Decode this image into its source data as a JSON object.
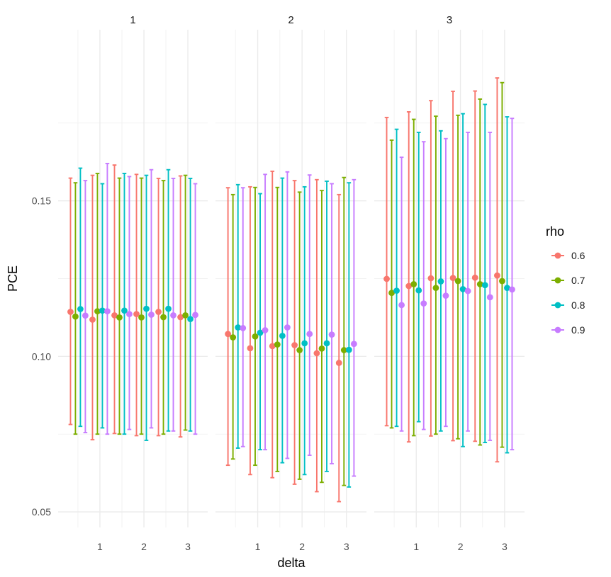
{
  "chart_data": {
    "type": "scatter",
    "title": "",
    "xlabel": "delta",
    "ylabel": "PCE",
    "facets": [
      "1",
      "2",
      "3"
    ],
    "ylim": [
      0.045,
      0.205
    ],
    "y_ticks": [
      0.05,
      0.1,
      0.15
    ],
    "y_tick_labels": [
      "0.05",
      "0.10",
      "0.15"
    ],
    "x_ticks": [
      1,
      2,
      3
    ],
    "x_tick_labels": [
      "1",
      "2",
      "3"
    ],
    "x_groups": [
      0.5,
      1.0,
      1.5,
      2.0,
      2.5,
      3.0
    ],
    "grid": true,
    "legend": {
      "title": "rho",
      "position": "right",
      "entries": [
        {
          "label": "0.6",
          "color": "#F8766D"
        },
        {
          "label": "0.7",
          "color": "#7CAE00"
        },
        {
          "label": "0.8",
          "color": "#00BFC4"
        },
        {
          "label": "0.9",
          "color": "#C77CFF"
        }
      ]
    },
    "series": [
      {
        "name": "0.6",
        "color": "#F8766D",
        "panels": [
          {
            "y": [
              0.1143,
              0.1118,
              0.1132,
              0.1136,
              0.1143,
              0.1126
            ],
            "lower": [
              0.0781,
              0.0732,
              0.0752,
              0.0745,
              0.0745,
              0.0741
            ],
            "upper": [
              0.1573,
              0.1582,
              0.1615,
              0.1585,
              0.1572,
              0.158
            ]
          },
          {
            "y": [
              0.1072,
              0.1026,
              0.1033,
              0.1036,
              0.101,
              0.0979
            ],
            "lower": [
              0.065,
              0.062,
              0.061,
              0.0589,
              0.0565,
              0.0533
            ],
            "upper": [
              0.1542,
              0.1545,
              0.1595,
              0.1565,
              0.1568,
              0.152
            ]
          },
          {
            "y": [
              0.1249,
              0.1226,
              0.1251,
              0.1252,
              0.1253,
              0.126
            ],
            "lower": [
              0.0777,
              0.0725,
              0.0744,
              0.0729,
              0.0727,
              0.0661
            ],
            "upper": [
              0.1768,
              0.1786,
              0.1822,
              0.1852,
              0.1853,
              0.1895
            ]
          }
        ]
      },
      {
        "name": "0.7",
        "color": "#7CAE00",
        "panels": [
          {
            "y": [
              0.1128,
              0.1145,
              0.1125,
              0.1125,
              0.1126,
              0.1132
            ],
            "lower": [
              0.075,
              0.075,
              0.075,
              0.075,
              0.075,
              0.0763
            ],
            "upper": [
              0.1558,
              0.1588,
              0.1573,
              0.1573,
              0.1565,
              0.1582
            ]
          },
          {
            "y": [
              0.1061,
              0.1064,
              0.1038,
              0.102,
              0.1025,
              0.102
            ],
            "lower": [
              0.067,
              0.065,
              0.063,
              0.0605,
              0.0595,
              0.0585
            ],
            "upper": [
              0.152,
              0.1543,
              0.1543,
              0.1528,
              0.1533,
              0.1575
            ]
          },
          {
            "y": [
              0.1204,
              0.1232,
              0.122,
              0.1242,
              0.1232,
              0.1242
            ],
            "lower": [
              0.077,
              0.0745,
              0.075,
              0.0735,
              0.0715,
              0.0708
            ],
            "upper": [
              0.1695,
              0.1762,
              0.1772,
              0.1775,
              0.1827,
              0.188
            ]
          }
        ]
      },
      {
        "name": "0.8",
        "color": "#00BFC4",
        "panels": [
          {
            "y": [
              0.1152,
              0.1147,
              0.1147,
              0.1153,
              0.1153,
              0.112
            ],
            "lower": [
              0.0775,
              0.077,
              0.075,
              0.073,
              0.076,
              0.076
            ],
            "upper": [
              0.1605,
              0.1555,
              0.1588,
              0.1582,
              0.16,
              0.1572
            ]
          },
          {
            "y": [
              0.1093,
              0.1076,
              0.1066,
              0.1042,
              0.1042,
              0.1021
            ],
            "lower": [
              0.0705,
              0.07,
              0.0658,
              0.062,
              0.063,
              0.058
            ],
            "upper": [
              0.1552,
              0.1523,
              0.1573,
              0.1545,
              0.1563,
              0.1558
            ]
          },
          {
            "y": [
              0.1211,
              0.1212,
              0.1241,
              0.1216,
              0.1229,
              0.122
            ],
            "lower": [
              0.0775,
              0.079,
              0.076,
              0.071,
              0.0723,
              0.069
            ],
            "upper": [
              0.173,
              0.172,
              0.1725,
              0.178,
              0.181,
              0.177
            ]
          }
        ]
      },
      {
        "name": "0.9",
        "color": "#C77CFF",
        "panels": [
          {
            "y": [
              0.1131,
              0.1145,
              0.1136,
              0.1134,
              0.1132,
              0.1133
            ],
            "lower": [
              0.0755,
              0.075,
              0.0765,
              0.077,
              0.076,
              0.075
            ],
            "upper": [
              0.1565,
              0.162,
              0.1578,
              0.16,
              0.1572,
              0.1555
            ]
          },
          {
            "y": [
              0.1091,
              0.1084,
              0.1093,
              0.1072,
              0.107,
              0.104
            ],
            "lower": [
              0.071,
              0.07,
              0.0672,
              0.0682,
              0.0655,
              0.0615
            ],
            "upper": [
              0.1542,
              0.1585,
              0.1593,
              0.1583,
              0.1555,
              0.1568
            ]
          },
          {
            "y": [
              0.1165,
              0.117,
              0.1195,
              0.121,
              0.119,
              0.1215
            ],
            "lower": [
              0.076,
              0.0765,
              0.0775,
              0.076,
              0.073,
              0.07
            ],
            "upper": [
              0.164,
              0.169,
              0.17,
              0.172,
              0.172,
              0.1765
            ]
          }
        ]
      }
    ]
  }
}
